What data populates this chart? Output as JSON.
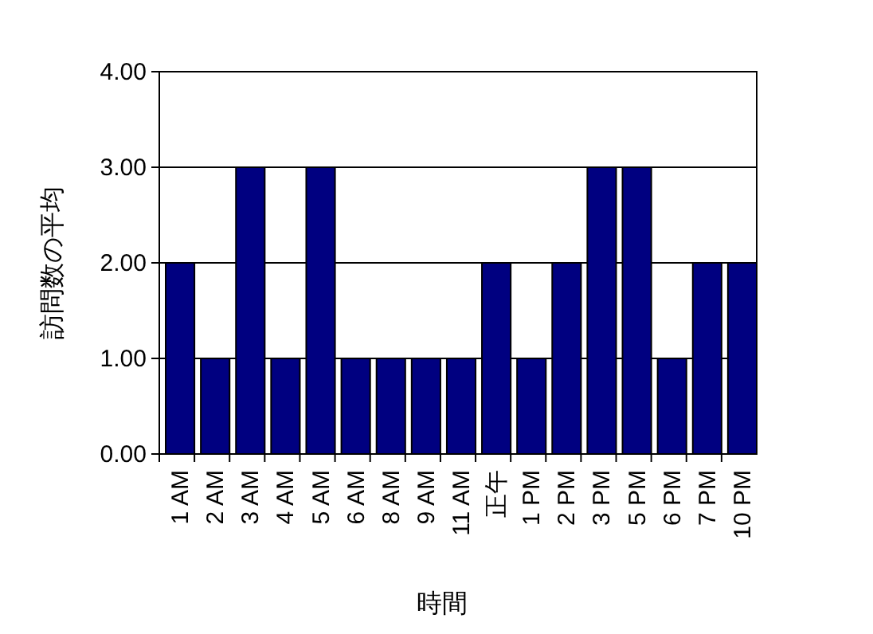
{
  "chart_data": {
    "type": "bar",
    "xlabel": "時間",
    "ylabel": "訪問数の平均",
    "categories": [
      "1 AM",
      "2 AM",
      "3 AM",
      "4 AM",
      "5 AM",
      "6 AM",
      "8 AM",
      "9 AM",
      "11 AM",
      "正午",
      "1 PM",
      "2 PM",
      "3 PM",
      "5 PM",
      "6 PM",
      "7 PM",
      "10 PM"
    ],
    "values": [
      2,
      1,
      3,
      1,
      3,
      1,
      1,
      1,
      1,
      2,
      1,
      2,
      3,
      3,
      1,
      2,
      2
    ],
    "color": "#000080",
    "ylim": [
      0,
      4
    ],
    "yticks": [
      {
        "value": 0,
        "label": "0.00"
      },
      {
        "value": 1,
        "label": "1.00"
      },
      {
        "value": 2,
        "label": "2.00"
      },
      {
        "value": 3,
        "label": "3.00"
      },
      {
        "value": 4,
        "label": "4.00"
      }
    ],
    "grid": "y"
  }
}
